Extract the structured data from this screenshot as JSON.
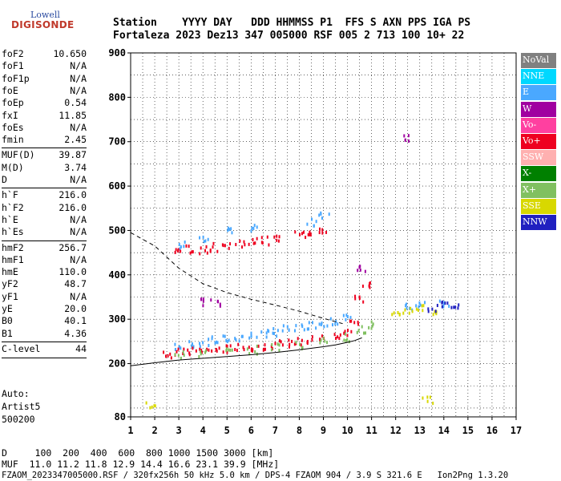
{
  "logo": {
    "line1": "Lowell",
    "line2": "DIGISONDE"
  },
  "header": {
    "line1": "Station    YYYY DAY   DDD HHMMSS P1  FFS S AXN PPS IGA PS",
    "line2": "Fortaleza 2023 Dez13 347 005000 RSF 005 2 713 100 10+ 22"
  },
  "params": [
    [
      {
        "k": "foF2",
        "v": "10.650"
      },
      {
        "k": "foF1",
        "v": "N/A"
      },
      {
        "k": "foF1p",
        "v": "N/A"
      },
      {
        "k": "foE",
        "v": "N/A"
      },
      {
        "k": "foEp",
        "v": "0.54"
      },
      {
        "k": "fxI",
        "v": "11.85"
      },
      {
        "k": "foEs",
        "v": "N/A"
      },
      {
        "k": "fmin",
        "v": "2.45"
      }
    ],
    [
      {
        "k": "MUF(D)",
        "v": "39.87"
      },
      {
        "k": "M(D)",
        "v": "3.74"
      },
      {
        "k": "D",
        "v": "N/A"
      }
    ],
    [
      {
        "k": "h`F",
        "v": "216.0"
      },
      {
        "k": "h`F2",
        "v": "216.0"
      },
      {
        "k": "h`E",
        "v": "N/A"
      },
      {
        "k": "h`Es",
        "v": "N/A"
      }
    ],
    [
      {
        "k": "hmF2",
        "v": "256.7"
      },
      {
        "k": "hmF1",
        "v": "N/A"
      },
      {
        "k": "hmE",
        "v": "110.0"
      },
      {
        "k": "yF2",
        "v": "48.7"
      },
      {
        "k": "yF1",
        "v": "N/A"
      },
      {
        "k": "yE",
        "v": "20.0"
      },
      {
        "k": "B0",
        "v": "40.1"
      },
      {
        "k": "B1",
        "v": "4.36"
      }
    ],
    [
      {
        "k": "C-level",
        "v": "44"
      }
    ]
  ],
  "auto": {
    "line1": "Auto:",
    "line2": "Artist5",
    "line3": "500200"
  },
  "legend": [
    {
      "label": "NoVal",
      "color": "#808080"
    },
    {
      "label": "NNE",
      "color": "#00d8ff"
    },
    {
      "label": "E",
      "color": "#4aa8ff"
    },
    {
      "label": "W",
      "color": "#a000a0"
    },
    {
      "label": "Vo-",
      "color": "#ff40a0"
    },
    {
      "label": "Vo+",
      "color": "#ee0020"
    },
    {
      "label": "SSW",
      "color": "#ffb0b0"
    },
    {
      "label": "X-",
      "color": "#008000"
    },
    {
      "label": "X+",
      "color": "#80c060"
    },
    {
      "label": "SSE",
      "color": "#d8d800"
    },
    {
      "label": "NNW",
      "color": "#2020c0"
    }
  ],
  "footer": {
    "line1": "D     100  200  400  600  800 1000 1500 3000 [km]",
    "line2": "MUF  11.0 11.2 11.8 12.9 14.4 16.6 23.1 39.9 [MHz]",
    "line3": "FZAOM_2023347005000.RSF / 320fx256h 50 kHz 5.0 km / DPS-4 FZAOM 904 / 3.9 S 321.6 E   Ion2Png 1.3.20"
  },
  "chart_data": {
    "type": "scatter",
    "title": "",
    "xlabel": "",
    "ylabel": "",
    "xlim": [
      1,
      17
    ],
    "ylim": [
      80,
      900
    ],
    "xticks": [
      1,
      2,
      3,
      4,
      5,
      6,
      7,
      8,
      9,
      10,
      11,
      12,
      13,
      14,
      15,
      16,
      17
    ],
    "yticks": [
      80,
      200,
      300,
      400,
      500,
      600,
      700,
      800,
      900
    ],
    "grid": true,
    "series": [
      {
        "name": "E",
        "color": "#4aa8ff",
        "values": [
          [
            3.0,
            240
          ],
          [
            3.5,
            248
          ],
          [
            4.0,
            250
          ],
          [
            4.5,
            255
          ],
          [
            5.0,
            258
          ],
          [
            5.5,
            262
          ],
          [
            6.0,
            266
          ],
          [
            6.5,
            270
          ],
          [
            7.0,
            274
          ],
          [
            7.5,
            280
          ],
          [
            8.0,
            284
          ],
          [
            8.5,
            290
          ],
          [
            9.0,
            295
          ],
          [
            9.5,
            300
          ],
          [
            10.0,
            305
          ],
          [
            3.2,
            470
          ],
          [
            4.0,
            480
          ],
          [
            5.0,
            500
          ],
          [
            6.0,
            510
          ],
          [
            8.5,
            520
          ],
          [
            9.0,
            540
          ],
          [
            12.5,
            330
          ],
          [
            13.0,
            340
          ],
          [
            14.0,
            340
          ]
        ]
      },
      {
        "name": "Vo+",
        "color": "#ee0020",
        "values": [
          [
            2.5,
            225
          ],
          [
            3.0,
            228
          ],
          [
            3.5,
            230
          ],
          [
            4.0,
            232
          ],
          [
            4.5,
            234
          ],
          [
            5.0,
            236
          ],
          [
            5.5,
            238
          ],
          [
            6.0,
            240
          ],
          [
            6.5,
            243
          ],
          [
            7.0,
            246
          ],
          [
            7.5,
            249
          ],
          [
            8.0,
            252
          ],
          [
            8.5,
            256
          ],
          [
            9.0,
            260
          ],
          [
            9.5,
            265
          ],
          [
            10.0,
            272
          ],
          [
            10.3,
            300
          ],
          [
            10.5,
            350
          ],
          [
            10.7,
            380
          ],
          [
            3.0,
            455
          ],
          [
            3.5,
            460
          ],
          [
            4.0,
            460
          ],
          [
            4.5,
            465
          ],
          [
            5.0,
            470
          ],
          [
            5.5,
            475
          ],
          [
            6.0,
            478
          ],
          [
            6.5,
            480
          ],
          [
            7.0,
            485
          ],
          [
            8.0,
            495
          ],
          [
            8.5,
            500
          ],
          [
            9.0,
            505
          ]
        ]
      },
      {
        "name": "X+",
        "color": "#80c060",
        "values": [
          [
            3.0,
            222
          ],
          [
            4.0,
            226
          ],
          [
            5.0,
            230
          ],
          [
            6.0,
            234
          ],
          [
            7.0,
            240
          ],
          [
            8.0,
            246
          ],
          [
            9.0,
            254
          ],
          [
            10.0,
            262
          ],
          [
            10.5,
            280
          ],
          [
            11.0,
            290
          ]
        ]
      },
      {
        "name": "SSE",
        "color": "#d8d800",
        "values": [
          [
            12.0,
            310
          ],
          [
            12.5,
            320
          ],
          [
            13.0,
            330
          ],
          [
            13.5,
            320
          ],
          [
            1.8,
            110
          ],
          [
            13.3,
            120
          ]
        ]
      },
      {
        "name": "NNW",
        "color": "#2020c0",
        "values": [
          [
            13.5,
            330
          ],
          [
            14.0,
            340
          ],
          [
            14.5,
            335
          ]
        ]
      },
      {
        "name": "W",
        "color": "#a000a0",
        "values": [
          [
            4.0,
            340
          ],
          [
            4.5,
            340
          ],
          [
            12.5,
            710
          ],
          [
            10.5,
            420
          ]
        ]
      }
    ],
    "curves": [
      {
        "name": "",
        "style": "solid",
        "values": [
          [
            1.0,
            195
          ],
          [
            2.0,
            202
          ],
          [
            3.0,
            208
          ],
          [
            4.0,
            212
          ],
          [
            5.0,
            216
          ],
          [
            6.0,
            220
          ],
          [
            7.0,
            225
          ],
          [
            8.0,
            231
          ],
          [
            9.0,
            238
          ],
          [
            9.5,
            242
          ],
          [
            10.0,
            248
          ],
          [
            10.3,
            252
          ],
          [
            10.6,
            258
          ]
        ]
      },
      {
        "name": "",
        "style": "dashed",
        "values": [
          [
            1.0,
            495
          ],
          [
            2.0,
            465
          ],
          [
            3.0,
            415
          ],
          [
            4.0,
            380
          ],
          [
            5.0,
            360
          ],
          [
            6.0,
            345
          ],
          [
            7.0,
            332
          ],
          [
            8.0,
            318
          ],
          [
            9.0,
            302
          ],
          [
            9.8,
            290
          ]
        ]
      }
    ]
  }
}
